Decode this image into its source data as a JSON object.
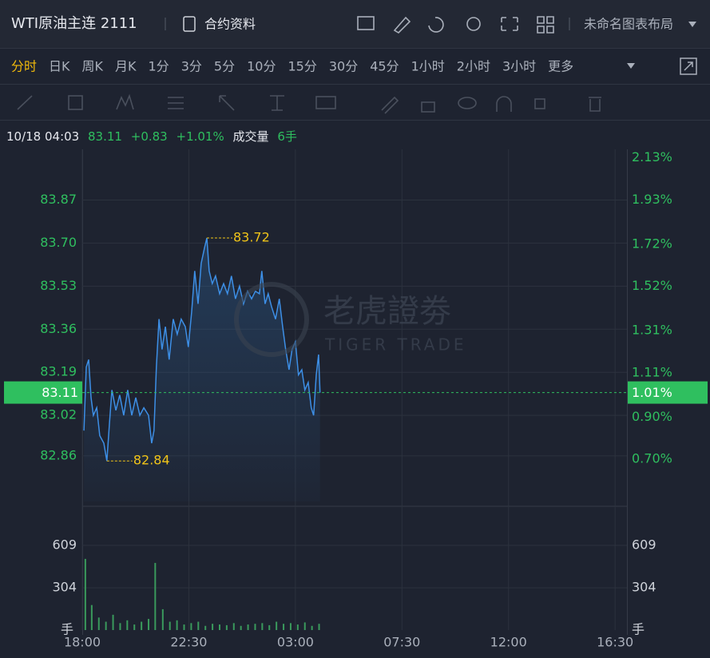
{
  "header": {
    "title": "WTI原油主连 2111",
    "contract_info": "合约资料",
    "layout_name": "未命名图表布局"
  },
  "periods": [
    "分时",
    "日K",
    "周K",
    "月K",
    "1分",
    "3分",
    "5分",
    "10分",
    "15分",
    "30分",
    "45分",
    "1小时",
    "2小时",
    "3小时",
    "更多"
  ],
  "info": {
    "datetime": "10/18 04:03",
    "price": 83.11,
    "change": "+0.83",
    "change_pct": "+1.01%",
    "volume_label": "成交量",
    "volume": "6手"
  },
  "watermark": {
    "cn": "老虎證劵",
    "en": "TIGER TRADE"
  },
  "chart_data": {
    "type": "line",
    "x": [
      0.07,
      0.17,
      0.27,
      0.37,
      0.47,
      0.61,
      0.74,
      0.91,
      1.04,
      1.15,
      1.25,
      1.42,
      1.58,
      1.75,
      1.92,
      2.09,
      2.26,
      2.43,
      2.6,
      2.8,
      2.93,
      3.03,
      3.13,
      3.24,
      3.37,
      3.51,
      3.67,
      3.84,
      4.01,
      4.18,
      4.35,
      4.48,
      4.62,
      4.75,
      4.89,
      5.02,
      5.16,
      5.26,
      5.36,
      5.49,
      5.63,
      5.8,
      5.97,
      6.13,
      6.3,
      6.47,
      6.64,
      6.81,
      6.98,
      7.15,
      7.31,
      7.48,
      7.58,
      7.72,
      7.85,
      7.99,
      8.16,
      8.32,
      8.46,
      8.59,
      8.73,
      8.86,
      9.0,
      9.13,
      9.27,
      9.4,
      9.54,
      9.67,
      9.77,
      9.88,
      9.98,
      10.04
    ],
    "series": [
      {
        "color": "#3d8fe6",
        "values": [
          82.96,
          83.21,
          83.24,
          83.09,
          83.02,
          83.05,
          82.94,
          82.91,
          82.84,
          82.99,
          83.12,
          83.04,
          83.1,
          83.02,
          83.12,
          83.02,
          83.09,
          83.02,
          83.05,
          83.02,
          82.91,
          82.96,
          83.21,
          83.4,
          83.28,
          83.37,
          83.24,
          83.4,
          83.34,
          83.4,
          83.37,
          83.29,
          83.43,
          83.59,
          83.46,
          83.62,
          83.68,
          83.72,
          83.59,
          83.54,
          83.57,
          83.5,
          83.54,
          83.5,
          83.57,
          83.48,
          83.53,
          83.46,
          83.51,
          83.48,
          83.51,
          83.5,
          83.59,
          83.46,
          83.5,
          83.45,
          83.4,
          83.48,
          83.37,
          83.28,
          83.2,
          83.28,
          83.31,
          83.18,
          83.2,
          83.12,
          83.15,
          83.05,
          83.02,
          83.18,
          83.26,
          83.11
        ]
      }
    ],
    "xlim": [
      0,
      23
    ],
    "xticks": [
      {
        "value": 0,
        "label": "18:00"
      },
      {
        "value": 4.5,
        "label": "22:30"
      },
      {
        "value": 9,
        "label": "03:00"
      },
      {
        "value": 13.5,
        "label": "07:30"
      },
      {
        "value": 18,
        "label": "12:00"
      },
      {
        "value": 22.5,
        "label": "16:30"
      }
    ],
    "ylim": [
      82.68,
      84.07
    ],
    "yticks": [
      83.87,
      {
        "value": 83.7,
        "label": "83.70"
      },
      83.53,
      83.36,
      83.19,
      83.02,
      82.86
    ],
    "y2lim": [
      0.5,
      2.17
    ],
    "y2ticks": [
      {
        "value": 2.13,
        "label": "2.13%"
      },
      {
        "value": 1.93,
        "label": "1.93%"
      },
      {
        "value": 1.72,
        "label": "1.72%"
      },
      {
        "value": 1.52,
        "label": "1.52%"
      },
      {
        "value": 1.31,
        "label": "1.31%"
      },
      {
        "value": 1.11,
        "label": "1.11%"
      },
      {
        "value": 0.9,
        "label": "0.90%"
      },
      {
        "value": 0.7,
        "label": "0.70%"
      }
    ],
    "current": {
      "value": 83.11,
      "pct": {
        "value": 1.01,
        "label": "1.01%"
      },
      "color": "#2fbf5f"
    },
    "high": {
      "x": 5.26,
      "value": 83.72
    },
    "low": {
      "x": 1.04,
      "value": 82.84
    },
    "annotation_color": "#f0c419",
    "grid": true,
    "volume_x": [
      0.13,
      0.4,
      0.7,
      1.0,
      1.3,
      1.6,
      1.9,
      2.2,
      2.5,
      2.8,
      3.08,
      3.4,
      3.7,
      4.0,
      4.3,
      4.6,
      4.9,
      5.2,
      5.5,
      5.8,
      6.1,
      6.4,
      6.7,
      7.0,
      7.3,
      7.6,
      7.9,
      8.2,
      8.5,
      8.8,
      9.1,
      9.4,
      9.7,
      10.0
    ],
    "volume_values": [
      512,
      180,
      90,
      60,
      110,
      50,
      70,
      40,
      60,
      80,
      483,
      150,
      60,
      70,
      40,
      50,
      60,
      30,
      45,
      40,
      35,
      50,
      30,
      40,
      45,
      50,
      35,
      60,
      45,
      50,
      40,
      55,
      30,
      45
    ],
    "volume_color": "#3a9a5c",
    "volume_ylim": [
      0,
      856
    ],
    "volume_yticks": [
      304,
      609
    ],
    "volume_unit": "手"
  }
}
